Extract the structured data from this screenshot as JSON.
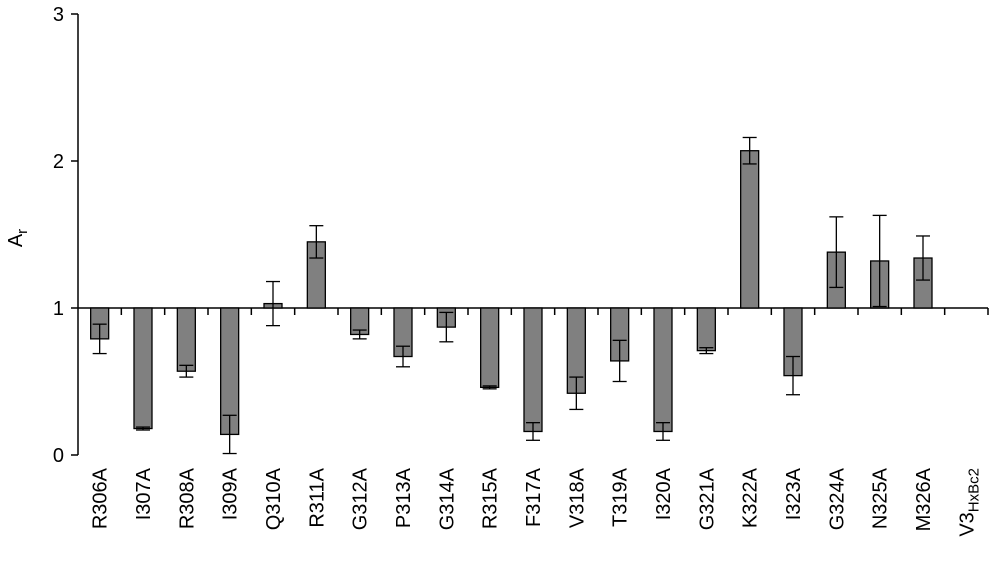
{
  "chart_data": {
    "type": "bar",
    "ylabel": "Ar",
    "ylabel_main": "A",
    "ylabel_sub": "r",
    "ylim": [
      0,
      3
    ],
    "yticks": [
      "0",
      "1",
      "2",
      "3"
    ],
    "baseline": 1,
    "categories": [
      "R306A",
      "I307A",
      "R308A",
      "I309A",
      "Q310A",
      "R311A",
      "G312A",
      "P313A",
      "G314A",
      "R315A",
      "F317A",
      "V318A",
      "T319A",
      "I320A",
      "G321A",
      "K322A",
      "I323A",
      "G324A",
      "N325A",
      "M326A",
      "V3HxBc2"
    ],
    "last_category": {
      "main": "V3",
      "sub": "HxBc2"
    },
    "values": [
      0.79,
      0.18,
      0.57,
      0.14,
      1.03,
      1.45,
      0.82,
      0.67,
      0.87,
      0.46,
      0.16,
      0.42,
      0.64,
      0.16,
      0.71,
      2.07,
      0.54,
      1.38,
      1.32,
      1.34,
      1.0
    ],
    "errors": [
      0.1,
      0.01,
      0.04,
      0.13,
      0.15,
      0.11,
      0.03,
      0.07,
      0.1,
      0.01,
      0.06,
      0.11,
      0.14,
      0.06,
      0.02,
      0.09,
      0.13,
      0.24,
      0.31,
      0.15,
      0
    ],
    "bar_color": "#808080"
  }
}
